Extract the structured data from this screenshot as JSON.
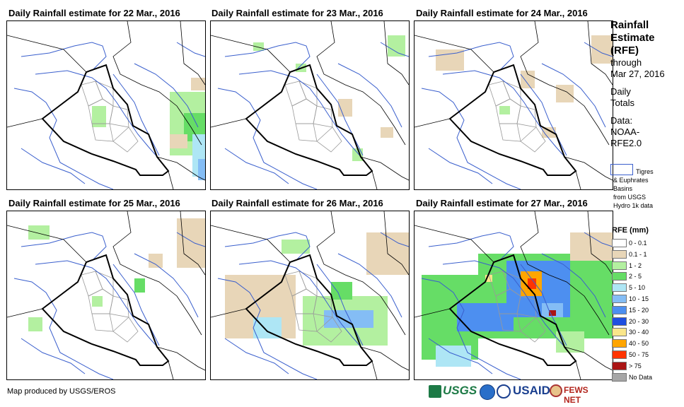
{
  "panels": [
    {
      "title": "Daily Rainfall estimate for 22 Mar., 2016"
    },
    {
      "title": "Daily Rainfall estimate for 23 Mar., 2016"
    },
    {
      "title": "Daily Rainfall estimate for 24 Mar., 2016"
    },
    {
      "title": "Daily Rainfall estimate for 25 Mar., 2016"
    },
    {
      "title": "Daily Rainfall estimate for 26 Mar., 2016"
    },
    {
      "title": "Daily Rainfall estimate for 27 Mar., 2016"
    }
  ],
  "legend": {
    "title_lines": [
      "Rainfall",
      "Estimate",
      "(RFE)"
    ],
    "through_label": "through",
    "through_date": "Mar 27, 2016",
    "totals_lines": [
      "Daily",
      "Totals"
    ],
    "data_lines": [
      "Data:",
      "NOAA-",
      "RFE2.0"
    ],
    "basin_lines": [
      "Tigres",
      "& Euphrates",
      "Basins",
      "from USGS",
      "Hydro 1k data"
    ],
    "scale_title": "RFE (mm)",
    "scale": [
      {
        "label": "0 - 0.1",
        "color": "#ffffff"
      },
      {
        "label": "0.1 - 1",
        "color": "#e8d6b8"
      },
      {
        "label": "1 - 2",
        "color": "#b3f0a0"
      },
      {
        "label": "2 - 5",
        "color": "#66dd66"
      },
      {
        "label": "5 - 10",
        "color": "#aee6f5"
      },
      {
        "label": "10 - 15",
        "color": "#84bdf5"
      },
      {
        "label": "15 - 20",
        "color": "#4d8ff0"
      },
      {
        "label": "20 - 30",
        "color": "#1f4fe0"
      },
      {
        "label": "30 - 40",
        "color": "#fae68a"
      },
      {
        "label": "40 - 50",
        "color": "#ffa500"
      },
      {
        "label": "50 - 75",
        "color": "#ff3300"
      },
      {
        "label": "> 75",
        "color": "#aa1515"
      },
      {
        "label": "No Data",
        "color": "#a6a6a6"
      }
    ]
  },
  "footer": {
    "credit": "Map produced by USGS/EROS"
  },
  "logos": {
    "usgs": "USGS",
    "usaid": "USAID",
    "fews": "FEWS NET"
  }
}
